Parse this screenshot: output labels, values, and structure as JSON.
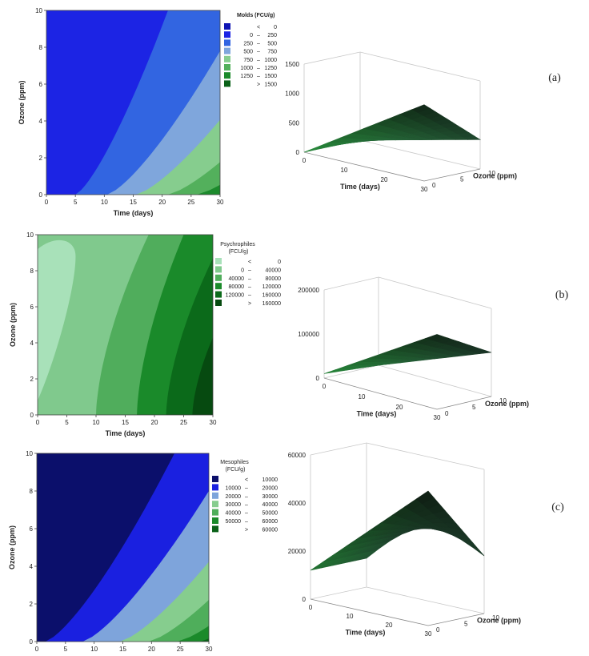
{
  "chart_data": [
    {
      "id": "a",
      "type": "heatmap",
      "panel_label": "(a)",
      "xlabel": "Time (days)",
      "ylabel": "Ozone (ppm)",
      "xlim": [
        0,
        30
      ],
      "ylim": [
        0,
        10
      ],
      "x_ticks": [
        "0",
        "5",
        "10",
        "15",
        "20",
        "25",
        "30"
      ],
      "y_ticks": [
        "0",
        "2",
        "4",
        "6",
        "8",
        "10"
      ],
      "contour_x_at_ozone0": [
        5,
        10.5,
        15.5,
        21,
        26
      ],
      "contour_x_at_ozone10": [
        21,
        32,
        40,
        48,
        56
      ],
      "legend": {
        "title": "Molds (FCU/g)",
        "entries": [
          {
            "lo": "",
            "sep": "<",
            "hi": "0",
            "color": "#0f15b4"
          },
          {
            "lo": "0",
            "sep": "–",
            "hi": "250",
            "color": "#1c24e4"
          },
          {
            "lo": "250",
            "sep": "–",
            "hi": "500",
            "color": "#3265e1"
          },
          {
            "lo": "500",
            "sep": "–",
            "hi": "750",
            "color": "#7fa6dc"
          },
          {
            "lo": "750",
            "sep": "–",
            "hi": "1000",
            "color": "#86cd8e"
          },
          {
            "lo": "1000",
            "sep": "–",
            "hi": "1250",
            "color": "#53b05c"
          },
          {
            "lo": "1250",
            "sep": "–",
            "hi": "1500",
            "color": "#1c8a2c"
          },
          {
            "lo": "",
            "sep": ">",
            "hi": "1500",
            "color": "#0a6118"
          }
        ]
      },
      "surface": {
        "z_ticks": [
          "0",
          "500",
          "1000",
          "1500"
        ],
        "zlim": [
          0,
          1500
        ],
        "time_ticks": [
          "0",
          "10",
          "20",
          "30"
        ],
        "ozone_ticks": [
          "0",
          "5",
          "10"
        ],
        "time_label": "Time (days)",
        "ozone_label": "Ozone (ppm)",
        "corner_z": {
          "t0_o0": 0,
          "t30_o0": 1300,
          "t0_o10": 0,
          "t30_o10": 500
        }
      }
    },
    {
      "id": "b",
      "type": "heatmap",
      "panel_label": "(b)",
      "xlabel": "Time (days)",
      "ylabel": "Ozone (ppm)",
      "xlim": [
        0,
        30
      ],
      "ylim": [
        0,
        10
      ],
      "x_ticks": [
        "0",
        "5",
        "10",
        "15",
        "20",
        "25",
        "30"
      ],
      "y_ticks": [
        "0",
        "2",
        "4",
        "6",
        "8",
        "10"
      ],
      "legend": {
        "title": "Psychrophiles (FCU/g)",
        "entries": [
          {
            "lo": "",
            "sep": "<",
            "hi": "0",
            "color": "#a8e1b9"
          },
          {
            "lo": "0",
            "sep": "–",
            "hi": "40000",
            "color": "#80c98d"
          },
          {
            "lo": "40000",
            "sep": "–",
            "hi": "80000",
            "color": "#50ad5c"
          },
          {
            "lo": "80000",
            "sep": "–",
            "hi": "120000",
            "color": "#1a8a2a"
          },
          {
            "lo": "120000",
            "sep": "–",
            "hi": "160000",
            "color": "#0b6a1a"
          },
          {
            "lo": "",
            "sep": ">",
            "hi": "160000",
            "color": "#064a10"
          }
        ]
      },
      "surface": {
        "z_ticks": [
          "0",
          "100000",
          "200000"
        ],
        "zlim": [
          0,
          200000
        ],
        "time_ticks": [
          "0",
          "10",
          "20",
          "30"
        ],
        "ozone_ticks": [
          "0",
          "5",
          "10"
        ],
        "time_label": "Time (days)",
        "ozone_label": "Ozone (ppm)",
        "corner_z": {
          "t0_o0": 10000,
          "t30_o0": 170000,
          "t0_o10": 0,
          "t30_o10": 100000
        }
      }
    },
    {
      "id": "c",
      "type": "heatmap",
      "panel_label": "(c)",
      "xlabel": "Time (days)",
      "ylabel": "Ozone (ppm)",
      "xlim": [
        0,
        30
      ],
      "ylim": [
        0,
        10
      ],
      "x_ticks": [
        "0",
        "5",
        "10",
        "15",
        "20",
        "25",
        "30"
      ],
      "y_ticks": [
        "0",
        "2",
        "4",
        "6",
        "8",
        "10"
      ],
      "legend": {
        "title": "Mesophiles (FCU/g)",
        "entries": [
          {
            "lo": "",
            "sep": "<",
            "hi": "10000",
            "color": "#0b0f6b"
          },
          {
            "lo": "10000",
            "sep": "–",
            "hi": "20000",
            "color": "#1a20e0"
          },
          {
            "lo": "20000",
            "sep": "–",
            "hi": "30000",
            "color": "#7ea4db"
          },
          {
            "lo": "30000",
            "sep": "–",
            "hi": "40000",
            "color": "#86cd8e"
          },
          {
            "lo": "40000",
            "sep": "–",
            "hi": "50000",
            "color": "#4fae5b"
          },
          {
            "lo": "50000",
            "sep": "–",
            "hi": "60000",
            "color": "#1a8a2a"
          },
          {
            "lo": "",
            "sep": ">",
            "hi": "60000",
            "color": "#0a6118"
          }
        ]
      },
      "surface": {
        "z_ticks": [
          "0",
          "20000",
          "40000",
          "60000"
        ],
        "zlim": [
          0,
          60000
        ],
        "time_ticks": [
          "0",
          "10",
          "20",
          "30"
        ],
        "ozone_ticks": [
          "0",
          "5",
          "10"
        ],
        "time_label": "Time (days)",
        "ozone_label": "Ozone (ppm)",
        "corner_z": {
          "t0_o0": 12000,
          "t30_o0": 56000,
          "t0_o10": 12000,
          "t30_o10": 24000
        }
      }
    }
  ]
}
